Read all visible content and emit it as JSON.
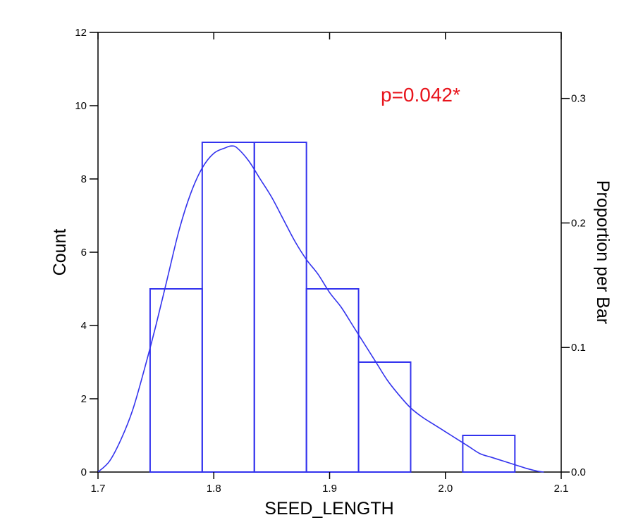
{
  "chart_data": {
    "type": "bar",
    "xlabel": "SEED_LENGTH",
    "ylabel": "Count",
    "y2label": "Proportion per Bar",
    "xlim": [
      1.7,
      2.1
    ],
    "ylim": [
      0,
      12
    ],
    "y2lim": [
      0.0,
      0.353
    ],
    "x_ticks": [
      "1.7",
      "1.8",
      "1.9",
      "2.0",
      "2.1"
    ],
    "y_ticks": [
      "0",
      "2",
      "4",
      "6",
      "8",
      "10",
      "12"
    ],
    "y2_ticks": [
      "0.0",
      "0.1",
      "0.2",
      "0.3"
    ],
    "bins": [
      {
        "x0": 1.745,
        "x1": 1.79,
        "count": 5
      },
      {
        "x0": 1.79,
        "x1": 1.835,
        "count": 9
      },
      {
        "x0": 1.835,
        "x1": 1.88,
        "count": 9
      },
      {
        "x0": 1.88,
        "x1": 1.925,
        "count": 5
      },
      {
        "x0": 1.925,
        "x1": 1.97,
        "count": 3
      },
      {
        "x0": 1.97,
        "x1": 2.015,
        "count": 0
      },
      {
        "x0": 2.015,
        "x1": 2.06,
        "count": 1
      }
    ],
    "density_curve": {
      "x": [
        1.7,
        1.71,
        1.72,
        1.73,
        1.74,
        1.75,
        1.76,
        1.77,
        1.78,
        1.79,
        1.8,
        1.81,
        1.815,
        1.82,
        1.83,
        1.84,
        1.85,
        1.86,
        1.87,
        1.88,
        1.89,
        1.9,
        1.91,
        1.92,
        1.93,
        1.94,
        1.95,
        1.96,
        1.97,
        1.98,
        1.99,
        2.0,
        2.01,
        2.02,
        2.03,
        2.04,
        2.05,
        2.06,
        2.07,
        2.08,
        2.085
      ],
      "y": [
        0.0,
        0.3,
        0.9,
        1.7,
        2.8,
        4.0,
        5.3,
        6.6,
        7.6,
        8.3,
        8.7,
        8.85,
        8.9,
        8.85,
        8.5,
        8.0,
        7.5,
        6.9,
        6.3,
        5.8,
        5.4,
        4.9,
        4.5,
        4.0,
        3.5,
        3.0,
        2.5,
        2.1,
        1.75,
        1.5,
        1.3,
        1.1,
        0.9,
        0.7,
        0.5,
        0.4,
        0.3,
        0.2,
        0.1,
        0.02,
        0.0
      ]
    },
    "annotation": "p=0.042*",
    "colors": {
      "series": "#3333ee",
      "annotation": "#e8141c",
      "axis": "#000000"
    },
    "grid": false,
    "legend": "none"
  }
}
